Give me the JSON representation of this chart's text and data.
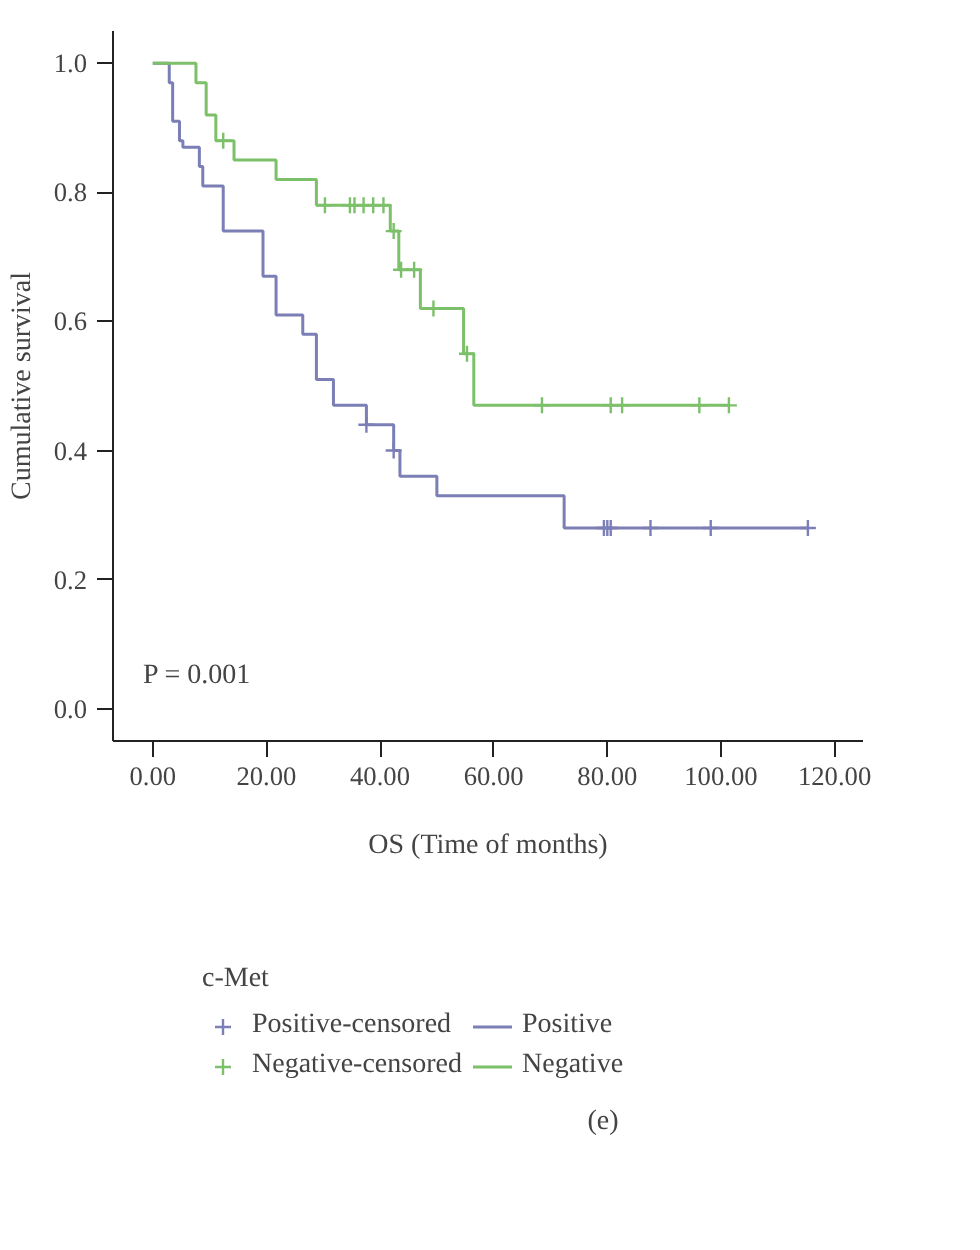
{
  "chart_data": {
    "type": "step",
    "xlabel": "OS (Time of months)",
    "ylabel": "Cumulative survival",
    "legend_title": "c-Met",
    "annotations": [
      "P = 0.001",
      "(e)"
    ],
    "xlim": [
      -7,
      125
    ],
    "ylim": [
      -0.05,
      1.05
    ],
    "xticks": [
      {
        "value": 0,
        "label": "0.00"
      },
      {
        "value": 20,
        "label": "20.00"
      },
      {
        "value": 40,
        "label": "40.00"
      },
      {
        "value": 60,
        "label": "60.00"
      },
      {
        "value": 80,
        "label": "80.00"
      },
      {
        "value": 100,
        "label": "100.00"
      },
      {
        "value": 120,
        "label": "120.00"
      }
    ],
    "yticks": [
      {
        "value": 0,
        "label": "0.0"
      },
      {
        "value": 0.2,
        "label": "0.2"
      },
      {
        "value": 0.4,
        "label": "0.4"
      },
      {
        "value": 0.6,
        "label": "0.6"
      },
      {
        "value": 0.8,
        "label": "0.8"
      },
      {
        "value": 1,
        "label": "1.0"
      }
    ],
    "grid": false,
    "legend": "bottom",
    "series": [
      {
        "name": "Positive-censored",
        "type": "scatter",
        "marker": "cross",
        "color": "#7b7fb5",
        "x": [
          37.6,
          42.4,
          79.4,
          80,
          80.6,
          87.6,
          98.2,
          115.3
        ],
        "values": [
          0.44,
          0.4,
          0.28,
          0.28,
          0.28,
          0.28,
          0.28,
          0.28
        ]
      },
      {
        "name": "Negative-censored",
        "type": "scatter",
        "marker": "cross",
        "color": "#7cc06a",
        "x": [
          12.4,
          30.3,
          34.7,
          35.5,
          37.1,
          38.8,
          40.6,
          42.4,
          43.7,
          46,
          49.4,
          55.3,
          68.5,
          80.6,
          82.6,
          96.2,
          101.4
        ],
        "values": [
          0.88,
          0.78,
          0.78,
          0.78,
          0.78,
          0.78,
          0.78,
          0.74,
          0.68,
          0.68,
          0.62,
          0.55,
          0.47,
          0.47,
          0.47,
          0.47,
          0.47
        ]
      },
      {
        "name": "Positive",
        "color": "#7b7fb5",
        "x": [
          0,
          2.9,
          3.5,
          4.7,
          5.3,
          8.2,
          8.8,
          12.4,
          19.4,
          21.7,
          26.4,
          28.8,
          31.8,
          37.6,
          42.4,
          43.5,
          50,
          72.4,
          115.3
        ],
        "values": [
          1.0,
          0.97,
          0.91,
          0.88,
          0.87,
          0.84,
          0.81,
          0.74,
          0.67,
          0.61,
          0.58,
          0.51,
          0.47,
          0.44,
          0.4,
          0.36,
          0.33,
          0.28,
          0.28
        ]
      },
      {
        "name": "Negative",
        "color": "#7cc06a",
        "x": [
          0,
          7.6,
          9.4,
          11.1,
          14.3,
          21.7,
          28.8,
          41.8,
          43.3,
          47.1,
          54.7,
          56.5,
          101.4
        ],
        "values": [
          1.0,
          0.97,
          0.92,
          0.88,
          0.85,
          0.82,
          0.78,
          0.74,
          0.68,
          0.62,
          0.55,
          0.47,
          0.47
        ]
      }
    ]
  }
}
